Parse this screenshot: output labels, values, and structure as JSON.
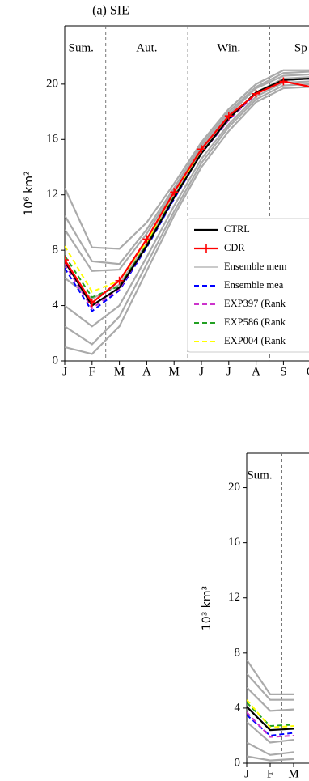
{
  "chart_data": [
    {
      "type": "line",
      "title": "(a) SIE",
      "ylabel": "10⁶ km²",
      "categories": [
        "J",
        "F",
        "M",
        "A",
        "M",
        "J",
        "J",
        "A",
        "S",
        "O"
      ],
      "seasons": [
        "Sum.",
        "Aut.",
        "Win.",
        "Sp"
      ],
      "ylim": [
        0,
        24.2
      ],
      "yticks": [
        0,
        4,
        8,
        12,
        16,
        20
      ],
      "legend": "lower right",
      "series": [
        {
          "name": "CTRL",
          "color": "#000000",
          "style": "solid",
          "values": [
            7.2,
            4.0,
            5.3,
            8.3,
            11.8,
            15.0,
            17.5,
            19.4,
            20.3,
            20.4
          ]
        },
        {
          "name": "CDR",
          "color": "#ff0000",
          "style": "solid",
          "marker": "+",
          "values": [
            7.3,
            4.2,
            5.8,
            8.8,
            12.2,
            15.3,
            17.7,
            19.3,
            20.2,
            19.8
          ]
        },
        {
          "name": "Ensemble mem",
          "color": "#aaaaaa",
          "style": "thin",
          "members": [
            [
              12.5,
              8.2,
              8.1,
              10.0,
              12.8,
              15.8,
              18.2,
              20.0,
              21.0,
              21.0
            ],
            [
              10.5,
              7.2,
              7.0,
              9.5,
              12.5,
              15.6,
              18.0,
              19.8,
              20.8,
              20.9
            ],
            [
              9.5,
              6.5,
              6.6,
              9.2,
              12.3,
              15.4,
              17.8,
              19.7,
              20.6,
              20.7
            ],
            [
              6.0,
              4.5,
              5.5,
              8.5,
              11.9,
              15.1,
              17.5,
              19.4,
              20.4,
              20.5
            ],
            [
              4.0,
              2.5,
              4.0,
              7.5,
              11.2,
              14.6,
              17.1,
              19.1,
              20.1,
              20.2
            ],
            [
              2.5,
              1.2,
              3.2,
              7.0,
              10.8,
              14.3,
              16.9,
              18.9,
              19.9,
              20.0
            ],
            [
              1.0,
              0.5,
              2.5,
              6.5,
              10.5,
              14.0,
              16.6,
              18.7,
              19.7,
              19.8
            ]
          ]
        },
        {
          "name": "Ensemble mea",
          "color": "#0000ff",
          "style": "dashed",
          "values": [
            6.7,
            3.6,
            5.1,
            8.2,
            11.7,
            15.0,
            17.4,
            19.3,
            20.3,
            20.4
          ]
        },
        {
          "name": "EXP397 (Rank",
          "color": "#cc33cc",
          "style": "dashed",
          "values": [
            7.0,
            3.8,
            5.2,
            8.3,
            11.8,
            15.0,
            17.4,
            19.3,
            20.3,
            20.4
          ]
        },
        {
          "name": "EXP586 (Rank",
          "color": "#22a022",
          "style": "dashed",
          "values": [
            7.6,
            4.6,
            5.4,
            8.4,
            11.9,
            15.0,
            17.5,
            19.4,
            20.3,
            20.4
          ]
        },
        {
          "name": "EXP004 (Rank",
          "color": "#ffff00",
          "style": "dashed",
          "values": [
            8.3,
            5.0,
            5.8,
            8.6,
            12.2,
            15.0,
            17.5,
            19.4,
            20.3,
            20.4
          ]
        }
      ]
    },
    {
      "type": "line",
      "ylabel": "10³ km³",
      "categories": [
        "J",
        "F",
        "M"
      ],
      "seasons": [
        "Sum."
      ],
      "ylim": [
        0,
        22.5
      ],
      "yticks": [
        0,
        4,
        8,
        12,
        16,
        20
      ],
      "series": [
        {
          "name": "CTRL",
          "color": "#000000",
          "style": "solid",
          "values": [
            4.1,
            2.4,
            2.5
          ]
        },
        {
          "name": "Ensemble mem",
          "color": "#aaaaaa",
          "style": "thin",
          "members": [
            [
              7.5,
              5.0,
              5.0
            ],
            [
              6.5,
              4.6,
              4.6
            ],
            [
              5.5,
              3.8,
              3.9
            ],
            [
              3.0,
              1.5,
              1.7
            ],
            [
              1.5,
              0.6,
              0.8
            ],
            [
              0.5,
              0.2,
              0.3
            ]
          ]
        },
        {
          "name": "Ensemble mean",
          "color": "#0000ff",
          "style": "dashed",
          "values": [
            3.5,
            2.0,
            2.2
          ]
        },
        {
          "name": "EXP397",
          "color": "#cc33cc",
          "style": "dashed",
          "values": [
            3.7,
            1.9,
            2.0
          ]
        },
        {
          "name": "EXP586",
          "color": "#22a022",
          "style": "dashed",
          "values": [
            4.4,
            2.7,
            2.8
          ]
        },
        {
          "name": "EXP004",
          "color": "#ffff00",
          "style": "dashed",
          "values": [
            4.6,
            2.6,
            2.7
          ]
        }
      ]
    }
  ]
}
